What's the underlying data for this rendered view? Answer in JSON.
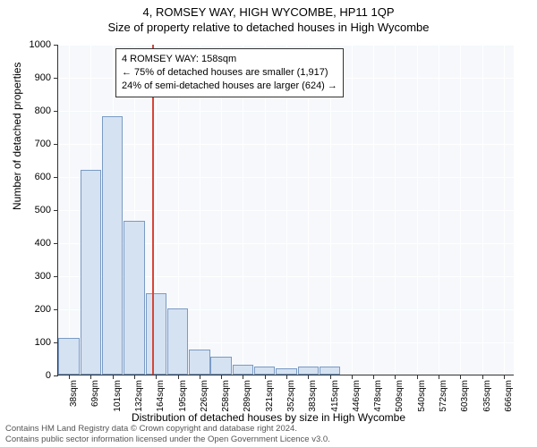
{
  "header": {
    "line1": "4, ROMSEY WAY, HIGH WYCOMBE, HP11 1QP",
    "line2": "Size of property relative to detached houses in High Wycombe"
  },
  "chart": {
    "type": "histogram",
    "background_color": "#f6f8fb",
    "grid_color": "#ffffff",
    "axis_color": "#333333",
    "bar_fill": "#d5e2f2",
    "bar_border": "#7a9bc4",
    "bar_width": 0.96,
    "ref_line_color": "#d64638",
    "ref_line_value": 158,
    "ylabel": "Number of detached properties",
    "xlabel": "Distribution of detached houses by size in High Wycombe",
    "ylim": [
      0,
      1000
    ],
    "ytick_step": 100,
    "x_categories": [
      "38sqm",
      "69sqm",
      "101sqm",
      "132sqm",
      "164sqm",
      "195sqm",
      "226sqm",
      "258sqm",
      "289sqm",
      "321sqm",
      "352sqm",
      "383sqm",
      "415sqm",
      "446sqm",
      "478sqm",
      "509sqm",
      "540sqm",
      "572sqm",
      "603sqm",
      "635sqm",
      "666sqm"
    ],
    "x_numeric": [
      38,
      69,
      101,
      132,
      164,
      195,
      226,
      258,
      289,
      321,
      352,
      383,
      415,
      446,
      478,
      509,
      540,
      572,
      603,
      635,
      666
    ],
    "values": [
      110,
      620,
      780,
      465,
      245,
      200,
      75,
      55,
      30,
      25,
      20,
      25,
      25,
      0,
      0,
      0,
      0,
      0,
      0,
      0,
      0
    ],
    "annotation": {
      "lines": [
        "4 ROMSEY WAY: 158sqm",
        "← 75% of detached houses are smaller (1,917)",
        "24% of semi-detached houses are larger (624) →"
      ],
      "border_color": "#333333",
      "background": "#ffffff",
      "fontsize": 11
    },
    "title_fontsize": 13,
    "label_fontsize": 12,
    "tick_fontsize": 11
  },
  "footer": {
    "line1": "Contains HM Land Registry data © Crown copyright and database right 2024.",
    "line2": "Contains public sector information licensed under the Open Government Licence v3.0."
  }
}
